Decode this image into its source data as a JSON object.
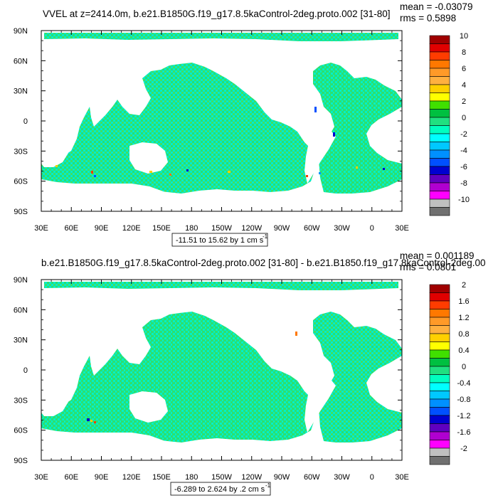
{
  "chart_data": [
    {
      "type": "heatmap",
      "title": "VVEL at z=2414.0m, b.e21.B1850G.f19_g17.8.5kaControl-2deg.proto.002 [31-80]",
      "stats": {
        "mean": "mean = -0.03079",
        "rms": "rms = 0.5898"
      },
      "x_ticks": [
        "30E",
        "60E",
        "90E",
        "120E",
        "150E",
        "180",
        "150W",
        "120W",
        "90W",
        "60W",
        "30W",
        "0",
        "30E"
      ],
      "y_ticks": [
        "90N",
        "60N",
        "30N",
        "0",
        "30S",
        "60S",
        "90S"
      ],
      "xlim": [
        30,
        390
      ],
      "ylim": [
        -90,
        90
      ],
      "range_label": "-11.51 to 15.62 by 1 cm s",
      "range_exponent": "-1",
      "colorbar": {
        "labels": [
          "10",
          "8",
          "6",
          "4",
          "2",
          "0",
          "-2",
          "-4",
          "-6",
          "-8",
          "-10"
        ],
        "colors": [
          "#a00000",
          "#e00000",
          "#ff3c00",
          "#ff7800",
          "#ff9a28",
          "#ffb040",
          "#ffd000",
          "#ffff00",
          "#40e000",
          "#00c040",
          "#20e080",
          "#00ffc0",
          "#00ffff",
          "#00c8ff",
          "#0090ff",
          "#0050ff",
          "#0000d0",
          "#6000c0",
          "#b000d0",
          "#ff00ff",
          "#c0c0c0",
          "#707070"
        ]
      }
    },
    {
      "type": "heatmap",
      "title": "b.e21.B1850G.f19_g17.8.5kaControl-2deg.proto.002 [31-80] - b.e21.B1850.f19_g17.8kaControl-2deg.00",
      "stats": {
        "mean": "mean = 0.001189",
        "rms": "rms = 0.0801"
      },
      "x_ticks": [
        "30E",
        "60E",
        "90E",
        "120E",
        "150E",
        "180",
        "150W",
        "120W",
        "90W",
        "60W",
        "30W",
        "0",
        "30E"
      ],
      "y_ticks": [
        "90N",
        "60N",
        "30N",
        "0",
        "30S",
        "60S",
        "90S"
      ],
      "xlim": [
        30,
        390
      ],
      "ylim": [
        -90,
        90
      ],
      "range_label": "-6.289 to 2.624 by .2 cm s",
      "range_exponent": "-1",
      "colorbar": {
        "labels": [
          "2",
          "1.6",
          "1.2",
          "0.8",
          "0.4",
          "0",
          "-0.4",
          "-0.8",
          "-1.2",
          "-1.6",
          "-2"
        ],
        "colors": [
          "#a00000",
          "#e00000",
          "#ff3c00",
          "#ff7800",
          "#ff9a28",
          "#ffb040",
          "#ffd000",
          "#ffff00",
          "#40e000",
          "#00c040",
          "#20e080",
          "#00ffc0",
          "#00ffff",
          "#00c8ff",
          "#0090ff",
          "#0050ff",
          "#0000d0",
          "#6000c0",
          "#b000d0",
          "#ff00ff",
          "#c0c0c0",
          "#707070"
        ]
      }
    }
  ]
}
